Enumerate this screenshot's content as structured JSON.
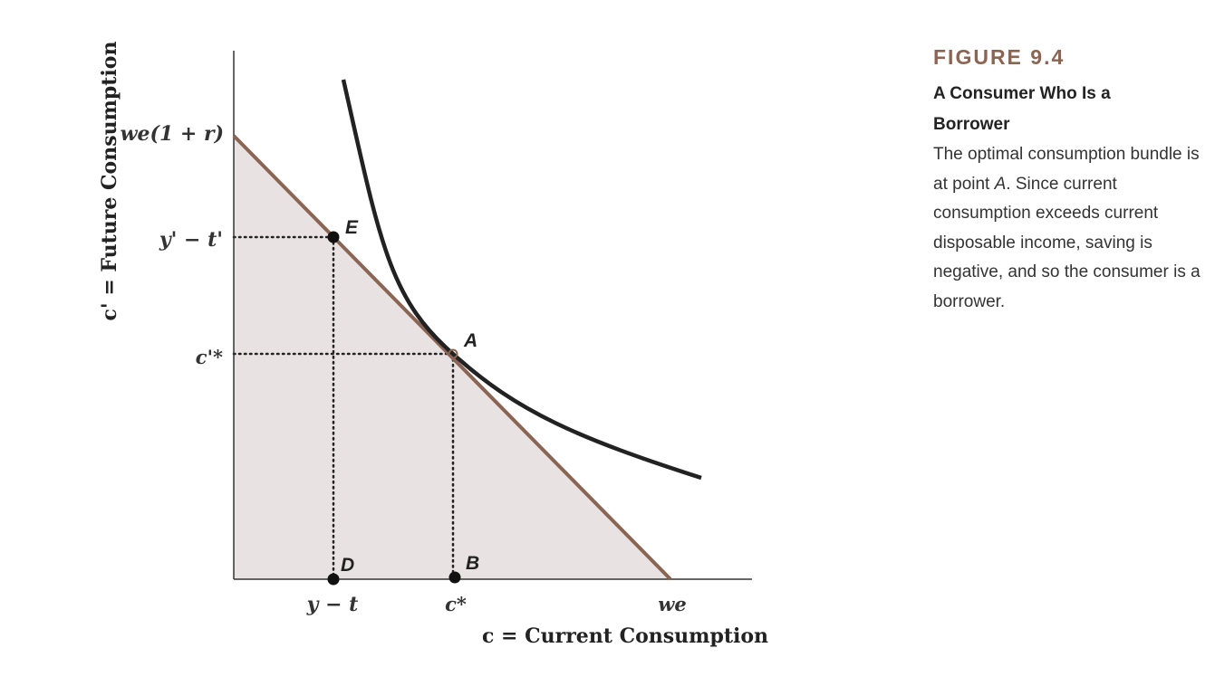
{
  "figure": {
    "number": "FIGURE 9.4",
    "title": "A Consumer Who Is a Borrower",
    "caption_part1": "The optimal consumption bundle is at point ",
    "caption_point": "A",
    "caption_part2": ". Since current consumption exceeds current disposable income, saving is negative, and so the consumer is a borrower."
  },
  "diagram": {
    "y_axis_title": "c' = Future Consumption",
    "x_axis_title": "c = Current Consumption",
    "y_ticks": {
      "intercept": "we(1 + r)",
      "endowment": "y' − t'",
      "optimum": "c'*"
    },
    "x_ticks": {
      "endowment": "y − t",
      "optimum": "c*",
      "intercept": "we"
    },
    "points": {
      "E": "E",
      "A": "A",
      "D": "D",
      "B": "B"
    },
    "colors": {
      "budget_line": "#8b6553",
      "feasible_fill": "#e9e2e2",
      "indifference_curve": "#222222",
      "axes": "#333333",
      "caption_heading": "#8b6553"
    }
  }
}
